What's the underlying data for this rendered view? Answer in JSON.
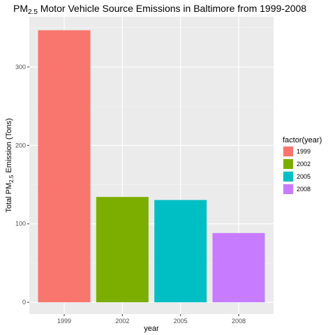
{
  "chart_data": {
    "type": "bar",
    "title_parts": {
      "pre": "PM",
      "sub": "2.5",
      "post": " Motor Vehicle Source Emissions in Baltimore from 1999-2008"
    },
    "ylabel_parts": {
      "pre": "Total PM",
      "sub": "2.5",
      "post": " Emission (Tons)"
    },
    "xlabel": "year",
    "categories": [
      "1999",
      "2002",
      "2005",
      "2008"
    ],
    "values": [
      346.8,
      134.3,
      130.4,
      88.3
    ],
    "colors": [
      "#F8766D",
      "#7CAE00",
      "#00BFC4",
      "#C77CFF"
    ],
    "ylim": [
      -15,
      364
    ],
    "yticks": [
      0,
      100,
      200,
      300
    ],
    "grid": true,
    "legend": {
      "title": "factor(year)",
      "placement": "right",
      "entries": [
        "1999",
        "2002",
        "2005",
        "2008"
      ]
    }
  }
}
